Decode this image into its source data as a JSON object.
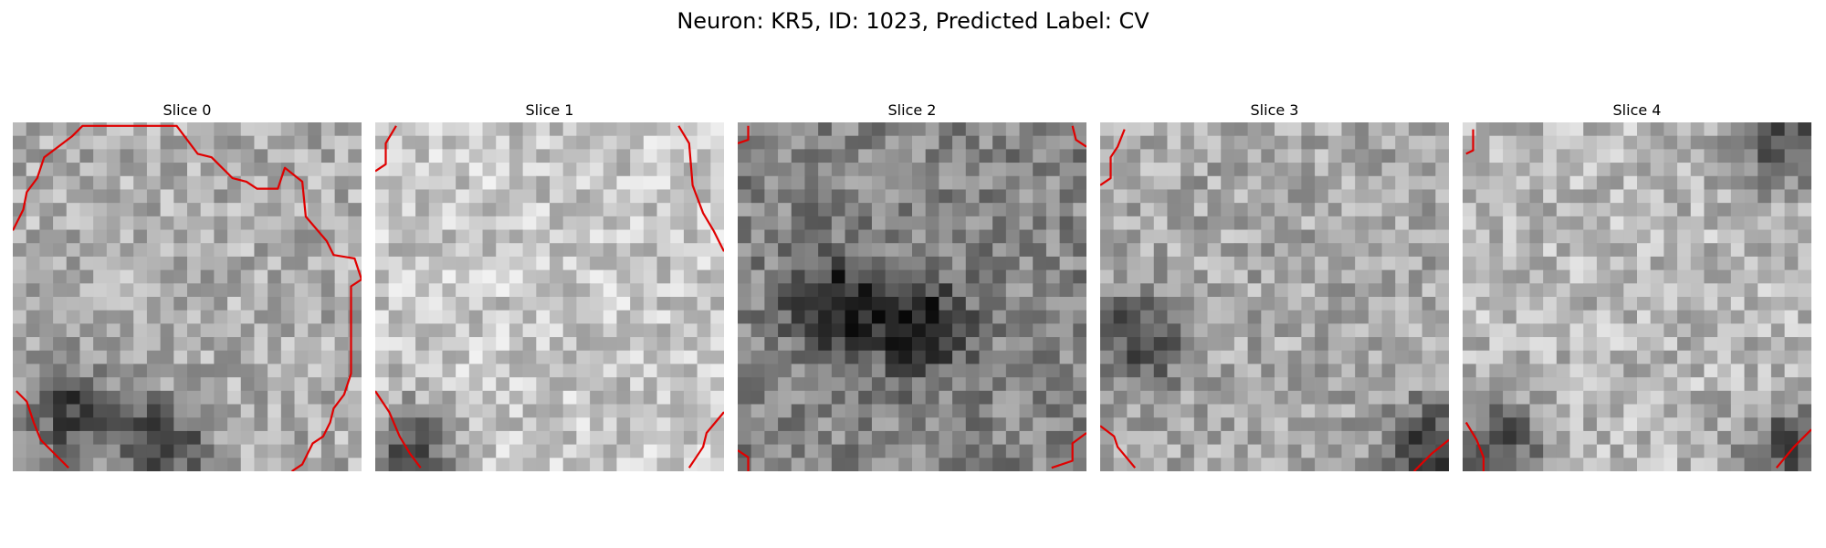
{
  "figure": {
    "title": "Neuron: KR5, ID: 1023, Predicted Label: CV"
  },
  "colors": {
    "contour": "#e00000",
    "background": "#ffffff"
  },
  "slices": [
    {
      "title": "Slice 0",
      "base_brightness": 0.68,
      "dark_regions": [
        "lower-left",
        "bottom-center"
      ],
      "contour": [
        [
          [
            0.0,
            0.31
          ],
          [
            0.03,
            0.25
          ],
          [
            0.04,
            0.2
          ],
          [
            0.07,
            0.16
          ],
          [
            0.09,
            0.1
          ],
          [
            0.13,
            0.07
          ],
          [
            0.17,
            0.04
          ],
          [
            0.2,
            0.01
          ],
          [
            0.3,
            0.01
          ],
          [
            0.47,
            0.01
          ],
          [
            0.53,
            0.09
          ],
          [
            0.57,
            0.1
          ],
          [
            0.63,
            0.16
          ],
          [
            0.67,
            0.17
          ],
          [
            0.7,
            0.19
          ],
          [
            0.76,
            0.19
          ],
          [
            0.78,
            0.13
          ],
          [
            0.83,
            0.17
          ],
          [
            0.84,
            0.27
          ],
          [
            0.9,
            0.34
          ],
          [
            0.92,
            0.38
          ],
          [
            0.98,
            0.39
          ],
          [
            1.0,
            0.45
          ],
          [
            0.97,
            0.47
          ],
          [
            0.97,
            0.72
          ],
          [
            0.95,
            0.78
          ],
          [
            0.92,
            0.82
          ],
          [
            0.91,
            0.86
          ],
          [
            0.89,
            0.9
          ],
          [
            0.86,
            0.92
          ],
          [
            0.83,
            0.98
          ],
          [
            0.8,
            1.0
          ]
        ],
        [
          [
            0.01,
            0.77
          ],
          [
            0.04,
            0.8
          ],
          [
            0.06,
            0.86
          ],
          [
            0.08,
            0.91
          ],
          [
            0.12,
            0.95
          ],
          [
            0.16,
            0.99
          ]
        ]
      ]
    },
    {
      "title": "Slice 1",
      "base_brightness": 0.78,
      "dark_regions": [
        "bottom-left"
      ],
      "contour": [
        [
          [
            0.06,
            0.01
          ],
          [
            0.03,
            0.06
          ],
          [
            0.03,
            0.12
          ],
          [
            0.0,
            0.14
          ]
        ],
        [
          [
            0.87,
            0.01
          ],
          [
            0.9,
            0.06
          ],
          [
            0.91,
            0.18
          ],
          [
            0.94,
            0.26
          ],
          [
            0.97,
            0.31
          ],
          [
            1.0,
            0.37
          ]
        ],
        [
          [
            0.0,
            0.77
          ],
          [
            0.04,
            0.83
          ],
          [
            0.07,
            0.9
          ],
          [
            0.1,
            0.95
          ],
          [
            0.13,
            0.99
          ]
        ],
        [
          [
            0.9,
            0.99
          ],
          [
            0.94,
            0.93
          ],
          [
            0.95,
            0.89
          ],
          [
            1.0,
            0.83
          ]
        ]
      ]
    },
    {
      "title": "Slice 2",
      "base_brightness": 0.52,
      "dark_regions": [
        "center-left",
        "center"
      ],
      "contour": [
        [
          [
            0.03,
            0.01
          ],
          [
            0.03,
            0.05
          ],
          [
            0.0,
            0.06
          ]
        ],
        [
          [
            0.96,
            0.01
          ],
          [
            0.97,
            0.05
          ],
          [
            1.0,
            0.07
          ]
        ],
        [
          [
            0.0,
            0.94
          ],
          [
            0.03,
            0.96
          ],
          [
            0.03,
            1.0
          ]
        ],
        [
          [
            0.9,
            0.99
          ],
          [
            0.96,
            0.97
          ],
          [
            0.96,
            0.92
          ],
          [
            1.0,
            0.89
          ]
        ]
      ]
    },
    {
      "title": "Slice 3",
      "base_brightness": 0.66,
      "dark_regions": [
        "left",
        "bottom-right"
      ],
      "contour": [
        [
          [
            0.07,
            0.02
          ],
          [
            0.05,
            0.07
          ],
          [
            0.03,
            0.1
          ],
          [
            0.03,
            0.16
          ],
          [
            0.0,
            0.18
          ]
        ],
        [
          [
            0.0,
            0.87
          ],
          [
            0.04,
            0.9
          ],
          [
            0.05,
            0.93
          ],
          [
            0.1,
            0.99
          ]
        ],
        [
          [
            0.9,
            1.0
          ],
          [
            0.95,
            0.95
          ],
          [
            1.0,
            0.91
          ]
        ]
      ]
    },
    {
      "title": "Slice 4",
      "base_brightness": 0.72,
      "dark_regions": [
        "top-right",
        "bottom-left",
        "bottom-right"
      ],
      "contour": [
        [
          [
            0.03,
            0.02
          ],
          [
            0.03,
            0.08
          ],
          [
            0.01,
            0.09
          ]
        ],
        [
          [
            0.01,
            0.86
          ],
          [
            0.04,
            0.91
          ],
          [
            0.06,
            0.96
          ],
          [
            0.06,
            1.0
          ]
        ],
        [
          [
            0.9,
            0.99
          ],
          [
            0.95,
            0.93
          ],
          [
            1.0,
            0.88
          ]
        ]
      ]
    }
  ]
}
